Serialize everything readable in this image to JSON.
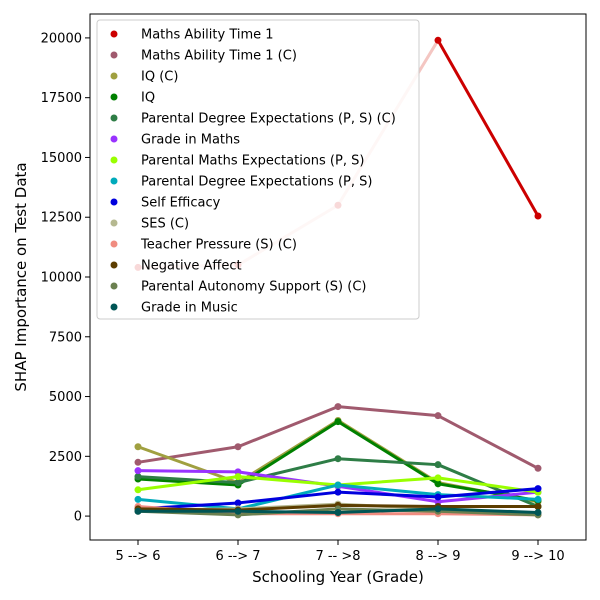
{
  "chart_data": {
    "type": "line",
    "title": "",
    "xlabel": "Schooling Year (Grade)",
    "ylabel": "SHAP Importance on Test Data",
    "categories": [
      "5 --> 6",
      "6 --> 7",
      "7 -- >8",
      "8 --> 9",
      "9 --> 10"
    ],
    "ylim": [
      -1000,
      21000
    ],
    "yticks": [
      0,
      2500,
      5000,
      7500,
      10000,
      12500,
      15000,
      17500,
      20000
    ],
    "grid": false,
    "legend_position": "upper-left",
    "series": [
      {
        "name": "Maths Ability Time 1",
        "color": "#cc0000",
        "values": [
          10400,
          10500,
          13000,
          19900,
          12550
        ],
        "segment_colors": [
          "#f4c6c2",
          "#f4c6c2",
          "#f4c6c2",
          "#cc0000"
        ]
      },
      {
        "name": "Maths Ability Time 1 (C)",
        "color": "#a05a6e",
        "values": [
          2250,
          2900,
          4580,
          4200,
          2000
        ]
      },
      {
        "name": "IQ (C)",
        "color": "#a0a040",
        "values": [
          2900,
          1400,
          4000,
          1400,
          600
        ]
      },
      {
        "name": "IQ",
        "color": "#008000",
        "values": [
          1550,
          1300,
          3950,
          1350,
          650
        ]
      },
      {
        "name": "Parental Degree Expectations (P, S) (C)",
        "color": "#2e7d46",
        "values": [
          1650,
          1400,
          2400,
          2150,
          400
        ]
      },
      {
        "name": "Grade in Maths",
        "color": "#9933ff",
        "values": [
          1900,
          1850,
          1250,
          600,
          1000
        ]
      },
      {
        "name": "Parental Maths Expectations (P, S)",
        "color": "#99ff00",
        "values": [
          1100,
          1650,
          1300,
          1600,
          1000
        ]
      },
      {
        "name": "Parental Degree Expectations (P, S)",
        "color": "#00aabb",
        "values": [
          700,
          300,
          1300,
          900,
          700
        ]
      },
      {
        "name": "Self Efficacy",
        "color": "#0000dd",
        "values": [
          300,
          550,
          1000,
          800,
          1150
        ]
      },
      {
        "name": "SES (C)",
        "color": "#b5b890",
        "values": [
          250,
          300,
          500,
          300,
          100
        ]
      },
      {
        "name": "Teacher Pressure (S) (C)",
        "color": "#f08c80",
        "values": [
          400,
          100,
          100,
          100,
          50
        ]
      },
      {
        "name": "Negative Affect",
        "color": "#5c3d00",
        "values": [
          300,
          250,
          450,
          400,
          400
        ]
      },
      {
        "name": "Parental Autonomy Support (S) (C)",
        "color": "#6b8050",
        "values": [
          200,
          50,
          300,
          200,
          50
        ]
      },
      {
        "name": "Grade in Music",
        "color": "#005555",
        "values": [
          200,
          200,
          150,
          300,
          150
        ]
      }
    ]
  }
}
